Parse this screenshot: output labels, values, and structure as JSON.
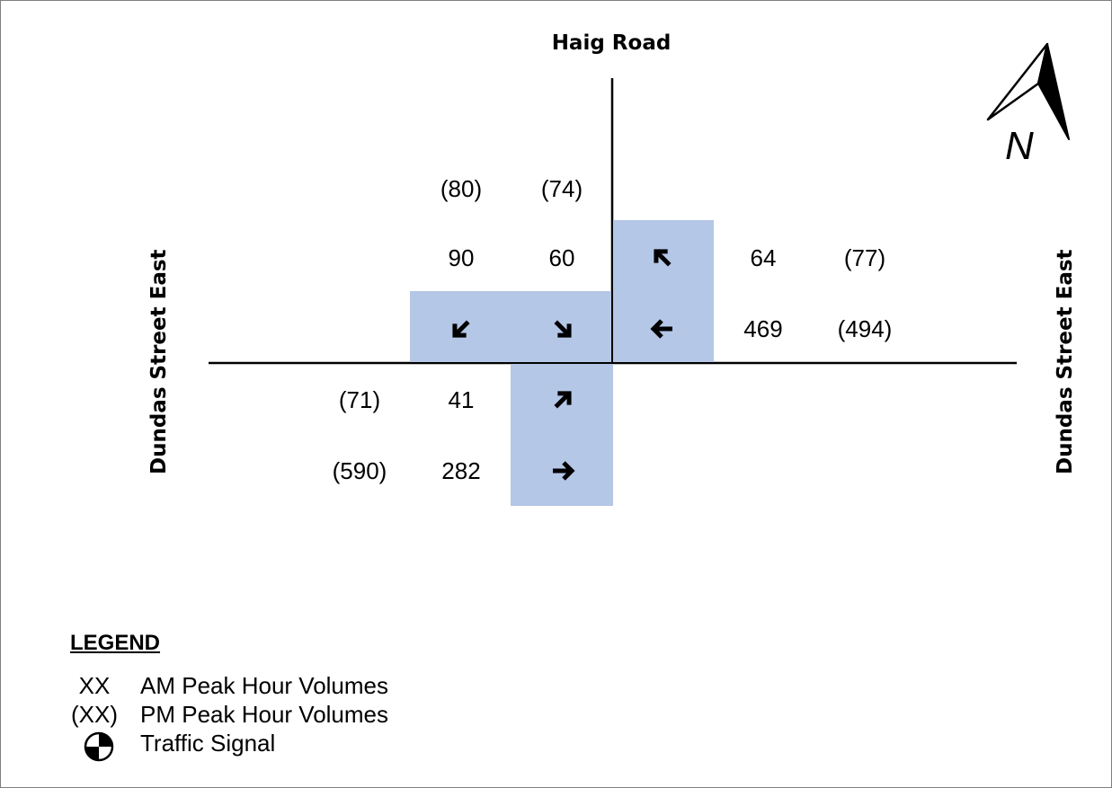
{
  "roads": {
    "north": "Haig Road",
    "west": "Dundas Street East",
    "east": "Dundas Street East"
  },
  "north_arrow": {
    "label": "N",
    "icon": "north-arrow-icon"
  },
  "southbound": {
    "pm": {
      "right": "(80)",
      "left": "(74)"
    },
    "am": {
      "right": "90",
      "left": "60"
    },
    "icons": {
      "right": "arrow-down-left-icon",
      "left": "arrow-down-right-icon"
    }
  },
  "westbound": {
    "right": {
      "am": "64",
      "pm": "(77)",
      "icon": "arrow-up-left-icon"
    },
    "through": {
      "am": "469",
      "pm": "(494)",
      "icon": "arrow-left-icon"
    }
  },
  "eastbound": {
    "left": {
      "am": "41",
      "pm": "(71)",
      "icon": "arrow-up-right-icon"
    },
    "through": {
      "am": "282",
      "pm": "(590)",
      "icon": "arrow-right-icon"
    }
  },
  "legend": {
    "title": "LEGEND",
    "items": [
      {
        "symbol": "XX",
        "label": "AM Peak Hour Volumes"
      },
      {
        "symbol": "(XX)",
        "label": "PM Peak Hour Volumes"
      },
      {
        "symbol": "traffic-signal-icon",
        "label": "Traffic Signal"
      }
    ]
  },
  "colors": {
    "shade": "#b4c7e7",
    "line": "#000000"
  }
}
